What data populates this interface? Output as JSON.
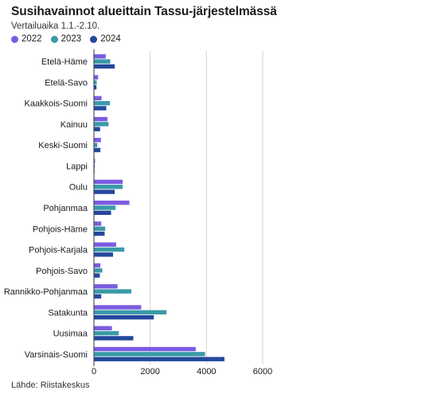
{
  "chart_data": {
    "type": "bar",
    "orientation": "horizontal",
    "title": "Susihavainnot alueittain Tassu-järjestelmässä",
    "subtitle": "Vertailuaika 1.1.-2.10.",
    "source": "Lähde: Riistakeskus",
    "categories": [
      "Etelä-Häme",
      "Etelä-Savo",
      "Kaakkois-Suomi",
      "Kainuu",
      "Keski-Suomi",
      "Lappi",
      "Oulu",
      "Pohjanmaa",
      "Pohjois-Häme",
      "Pohjois-Karjala",
      "Pohjois-Savo",
      "Rannikko-Pohjanmaa",
      "Satakunta",
      "Uusimaa",
      "Varsinais-Suomi"
    ],
    "series": [
      {
        "name": "2022",
        "color": "#7b5ce0",
        "values": [
          420,
          150,
          270,
          480,
          250,
          40,
          1020,
          1260,
          260,
          790,
          230,
          840,
          1680,
          640,
          3620
        ]
      },
      {
        "name": "2023",
        "color": "#3a9aa8",
        "values": [
          580,
          100,
          570,
          520,
          120,
          30,
          1020,
          770,
          400,
          1080,
          300,
          1330,
          2580,
          880,
          3950
        ]
      },
      {
        "name": "2024",
        "color": "#24489c",
        "values": [
          740,
          90,
          440,
          220,
          230,
          20,
          740,
          610,
          380,
          680,
          210,
          260,
          2130,
          1400,
          4640
        ]
      }
    ],
    "xlim": [
      0,
      6000
    ],
    "xticks": [
      0,
      2000,
      4000,
      6000
    ],
    "xtick_labels": [
      "0",
      "2000",
      "4000",
      "6000"
    ],
    "grid": true,
    "legend_position": "top-left"
  }
}
